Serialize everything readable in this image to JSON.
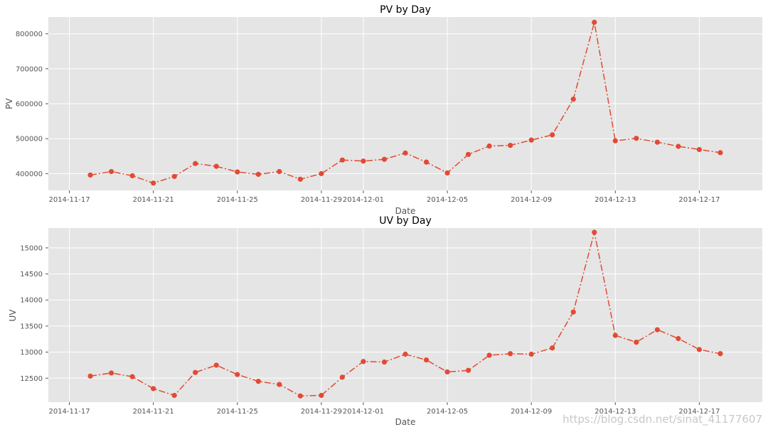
{
  "chart_data": [
    {
      "type": "line",
      "title": "PV by Day",
      "xlabel": "Date",
      "ylabel": "PV",
      "grid": true,
      "x": [
        "2014-11-18",
        "2014-11-19",
        "2014-11-20",
        "2014-11-21",
        "2014-11-22",
        "2014-11-23",
        "2014-11-24",
        "2014-11-25",
        "2014-11-26",
        "2014-11-27",
        "2014-11-28",
        "2014-11-29",
        "2014-11-30",
        "2014-12-01",
        "2014-12-02",
        "2014-12-03",
        "2014-12-04",
        "2014-12-05",
        "2014-12-06",
        "2014-12-07",
        "2014-12-08",
        "2014-12-09",
        "2014-12-10",
        "2014-12-11",
        "2014-12-12",
        "2014-12-13",
        "2014-12-14",
        "2014-12-15",
        "2014-12-16",
        "2014-12-17",
        "2014-12-18"
      ],
      "values": [
        396000,
        406000,
        394000,
        373000,
        392000,
        429000,
        421000,
        405000,
        398000,
        406000,
        384000,
        400000,
        439000,
        436000,
        441000,
        459000,
        433000,
        402000,
        455000,
        479000,
        481000,
        496000,
        511000,
        613000,
        833000,
        494000,
        501000,
        490000,
        478000,
        469000,
        460000
      ],
      "xlim": [
        "2014-11-16",
        "2014-12-20"
      ],
      "ylim": [
        352000,
        848000
      ],
      "xticks": [
        "2014-11-17",
        "2014-11-21",
        "2014-11-25",
        "2014-11-29",
        "2014-12-01",
        "2014-12-05",
        "2014-12-09",
        "2014-12-13",
        "2014-12-17"
      ],
      "yticks": [
        400000,
        500000,
        600000,
        700000,
        800000
      ],
      "color": "#E24A33"
    },
    {
      "type": "line",
      "title": "UV by Day",
      "xlabel": "Date",
      "ylabel": "UV",
      "grid": true,
      "x": [
        "2014-11-18",
        "2014-11-19",
        "2014-11-20",
        "2014-11-21",
        "2014-11-22",
        "2014-11-23",
        "2014-11-24",
        "2014-11-25",
        "2014-11-26",
        "2014-11-27",
        "2014-11-28",
        "2014-11-29",
        "2014-11-30",
        "2014-12-01",
        "2014-12-02",
        "2014-12-03",
        "2014-12-04",
        "2014-12-05",
        "2014-12-06",
        "2014-12-07",
        "2014-12-08",
        "2014-12-09",
        "2014-12-10",
        "2014-12-11",
        "2014-12-12",
        "2014-12-13",
        "2014-12-14",
        "2014-12-15",
        "2014-12-16",
        "2014-12-17",
        "2014-12-18"
      ],
      "values": [
        12540,
        12600,
        12530,
        12300,
        12170,
        12610,
        12750,
        12570,
        12440,
        12380,
        12160,
        12170,
        12520,
        12820,
        12810,
        12960,
        12850,
        12620,
        12650,
        12940,
        12970,
        12960,
        13080,
        13770,
        15300,
        13320,
        13190,
        13430,
        13260,
        13050,
        12970
      ],
      "xlim": [
        "2014-11-16",
        "2014-12-20"
      ],
      "ylim": [
        12040,
        15380
      ],
      "xticks": [
        "2014-11-17",
        "2014-11-21",
        "2014-11-25",
        "2014-11-29",
        "2014-12-01",
        "2014-12-05",
        "2014-12-09",
        "2014-12-13",
        "2014-12-17"
      ],
      "yticks": [
        12500,
        13000,
        13500,
        14000,
        14500,
        15000
      ],
      "color": "#E24A33"
    }
  ],
  "watermark": "https://blog.csdn.net/sinat_41177607"
}
